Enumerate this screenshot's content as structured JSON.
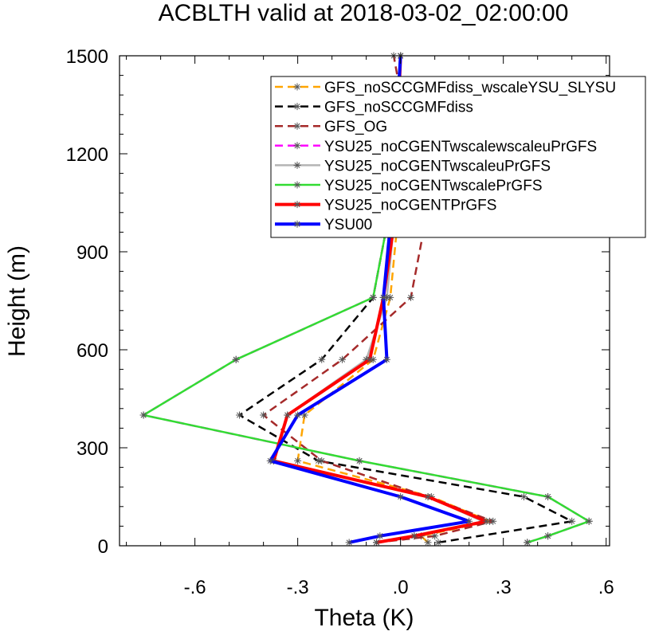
{
  "chart_data": {
    "type": "line",
    "title": "ACBLTH valid at 2018-03-02_02:00:00",
    "xlabel": "Theta (K)",
    "ylabel": "Height (m)",
    "xlim": [
      -0.82,
      0.61
    ],
    "ylim": [
      0,
      1500
    ],
    "x_ticks": [
      -0.6,
      -0.3,
      0.0,
      0.3,
      0.6
    ],
    "x_tick_labels": [
      "-.6",
      "-.3",
      ".0",
      ".3",
      ".6"
    ],
    "y_ticks": [
      0,
      300,
      600,
      900,
      1200,
      1500
    ],
    "y_tick_labels": [
      "0",
      "300",
      "600",
      "900",
      "1200",
      "1500"
    ],
    "legend_position": "top-right",
    "series": [
      {
        "name": "GFS_noSCCGMFdiss_wscaleYSU_SLYSU",
        "color": "#ffa500",
        "dash": "dash",
        "width": 2.5,
        "x": [
          0.08,
          0.06,
          0.26,
          0.09,
          -0.3,
          -0.28,
          -0.08,
          -0.03,
          -0.01,
          0.0
        ],
        "y": [
          10,
          30,
          75,
          150,
          260,
          400,
          570,
          760,
          980,
          1500
        ]
      },
      {
        "name": "GFS_noSCCGMFdiss",
        "color": "#000000",
        "dash": "dash",
        "width": 2.5,
        "x": [
          0.11,
          0.5,
          0.36,
          -0.24,
          -0.47,
          -0.23,
          -0.08,
          -0.04,
          -0.01,
          0.0
        ],
        "y": [
          10,
          75,
          150,
          260,
          400,
          570,
          760,
          980,
          1200,
          1500
        ]
      },
      {
        "name": "GFS_OG",
        "color": "#a52a2a",
        "dash": "dash",
        "width": 2.5,
        "x": [
          -0.07,
          0.1,
          0.27,
          0.08,
          -0.23,
          -0.4,
          -0.17,
          0.03,
          0.07,
          -0.02
        ],
        "y": [
          10,
          30,
          75,
          150,
          260,
          400,
          570,
          760,
          980,
          1500
        ]
      },
      {
        "name": "YSU25_noCGENTwscalewscaleuPrGFS",
        "color": "#ff00ff",
        "dash": "dash",
        "width": 2.5,
        "x": [
          0.37,
          0.43,
          0.55,
          0.43,
          -0.12,
          -0.75,
          -0.48,
          -0.08,
          -0.04,
          0.0
        ],
        "y": [
          10,
          30,
          75,
          150,
          260,
          400,
          570,
          760,
          980,
          1500
        ]
      },
      {
        "name": "YSU25_noCGENTwscaleuPrGFS",
        "color": "#b4b4b4",
        "dash": "solid",
        "width": 2.5,
        "x": [
          -0.07,
          0.04,
          0.24,
          0.08,
          -0.37,
          -0.33,
          -0.1,
          -0.04,
          -0.02,
          0.0
        ],
        "y": [
          10,
          30,
          75,
          150,
          260,
          400,
          570,
          760,
          980,
          1500
        ]
      },
      {
        "name": "YSU25_noCGENTwscalePrGFS",
        "color": "#32dc32",
        "dash": "solid",
        "width": 2.5,
        "x": [
          0.37,
          0.43,
          0.55,
          0.43,
          -0.12,
          -0.75,
          -0.48,
          -0.08,
          -0.04,
          0.0
        ],
        "y": [
          10,
          30,
          75,
          150,
          260,
          400,
          570,
          760,
          980,
          1500
        ]
      },
      {
        "name": "YSU25_noCGENTPrGFS",
        "color": "#ff0000",
        "dash": "solid",
        "width": 4,
        "x": [
          -0.07,
          0.04,
          0.25,
          0.08,
          -0.37,
          -0.33,
          -0.09,
          -0.05,
          -0.02,
          0.0
        ],
        "y": [
          10,
          30,
          75,
          150,
          260,
          400,
          570,
          760,
          980,
          1500
        ]
      },
      {
        "name": "YSU00",
        "color": "#0000ff",
        "dash": "solid",
        "width": 4,
        "x": [
          -0.15,
          -0.06,
          0.2,
          0.0,
          -0.38,
          -0.3,
          -0.04,
          -0.05,
          -0.03,
          0.0
        ],
        "y": [
          10,
          30,
          75,
          150,
          260,
          400,
          570,
          760,
          980,
          1500
        ]
      }
    ]
  }
}
